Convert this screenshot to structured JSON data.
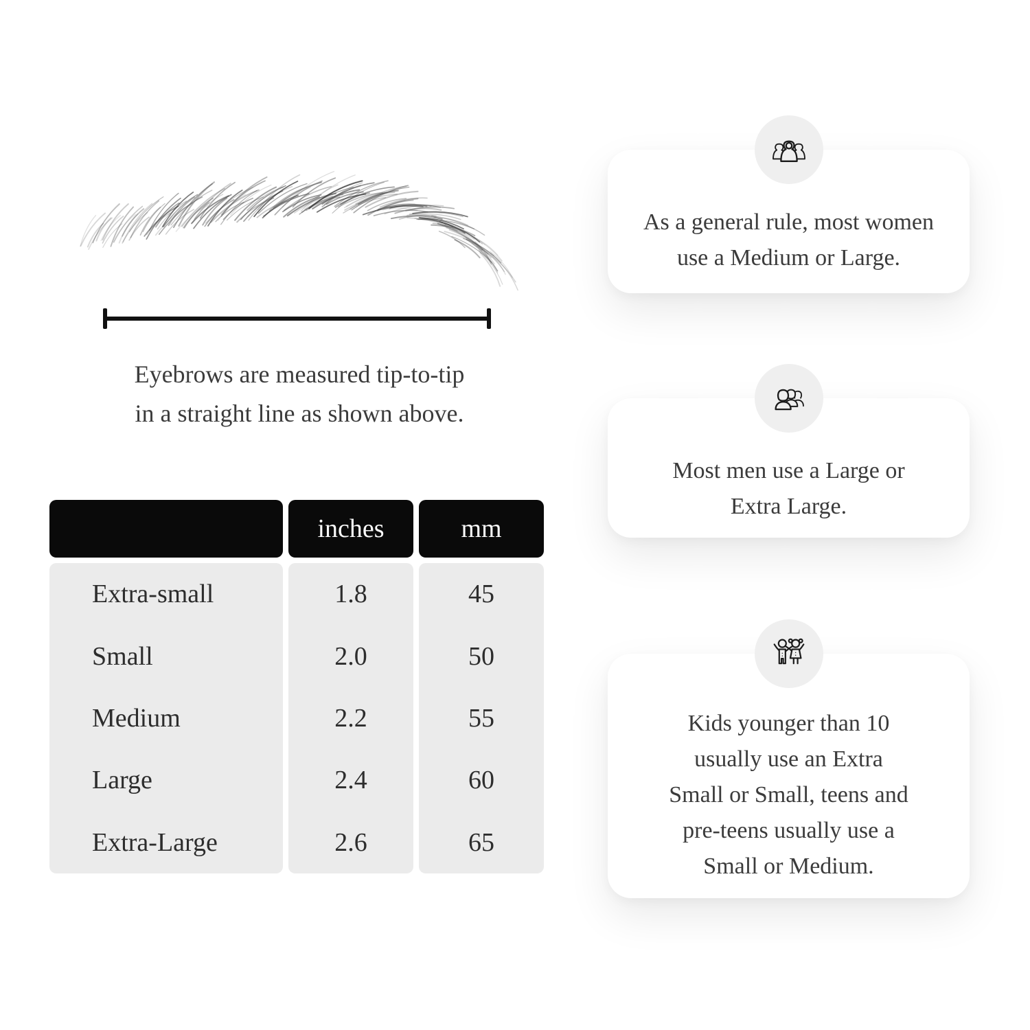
{
  "figure": {
    "caption_lines": [
      "Eyebrows are measured tip-to-tip",
      "in a straight line as shown above."
    ]
  },
  "table": {
    "headers": [
      "",
      "inches",
      "mm"
    ],
    "rows": [
      {
        "size": "Extra-small",
        "inches": "1.8",
        "mm": "45"
      },
      {
        "size": "Small",
        "inches": "2.0",
        "mm": "50"
      },
      {
        "size": "Medium",
        "inches": "2.2",
        "mm": "55"
      },
      {
        "size": "Large",
        "inches": "2.4",
        "mm": "60"
      },
      {
        "size": "Extra-Large",
        "inches": "2.6",
        "mm": "65"
      }
    ]
  },
  "cards": [
    {
      "icon": "women-group-icon",
      "lines": [
        "As a general rule, most women",
        "use a Medium or Large."
      ]
    },
    {
      "icon": "men-group-icon",
      "lines": [
        "Most men use a Large or",
        "Extra Large."
      ]
    },
    {
      "icon": "kids-icon",
      "lines": [
        "Kids younger than 10",
        "usually use an Extra",
        "Small or Small, teens and",
        "pre-teens usually use a",
        "Small or Medium."
      ]
    }
  ],
  "colors": {
    "page_background": "#ffffff",
    "table_header_fill": "#0a0a0a",
    "table_header_text": "#fbfbfb",
    "table_body_fill": "#ebebeb",
    "body_text": "#3b3b3b",
    "icon_circle_fill": "#efefef",
    "icon_stroke": "#1b1b1b",
    "measure_line": "#111111"
  }
}
